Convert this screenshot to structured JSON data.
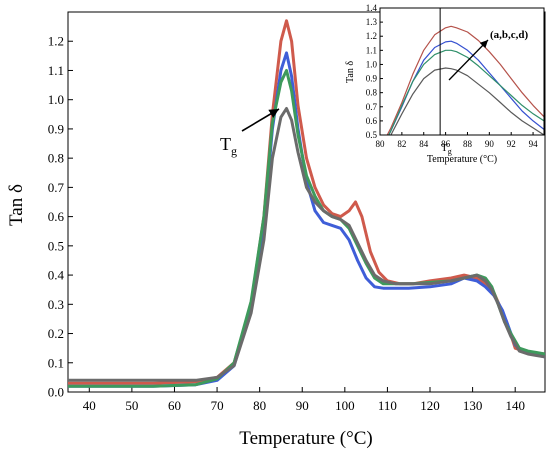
{
  "chart_data": [
    {
      "type": "line",
      "title": "",
      "xlabel": "Temperature (°C)",
      "ylabel": "Tan δ",
      "xlim": [
        35,
        147
      ],
      "ylim": [
        0,
        1.3
      ],
      "x_ticks": [
        "40",
        "50",
        "60",
        "70",
        "80",
        "90",
        "100",
        "110",
        "120",
        "130",
        "140"
      ],
      "y_ticks": [
        "0.0",
        "0.1",
        "0.2",
        "0.3",
        "0.4",
        "0.5",
        "0.6",
        "0.7",
        "0.8",
        "0.9",
        "1.0",
        "1.1",
        "1.2"
      ],
      "grid": false,
      "legend": "none",
      "annotation": {
        "text": "T",
        "subscript": "g"
      },
      "series": [
        {
          "color": "#cf5a4c",
          "x": [
            35,
            55,
            65,
            70,
            74,
            78,
            81,
            83,
            85,
            86.3,
            87.5,
            89,
            91,
            93,
            95,
            97,
            99,
            101,
            102.5,
            104,
            106,
            108,
            110,
            113,
            116,
            120,
            125,
            128,
            131,
            133,
            135,
            136.5,
            138,
            140,
            142,
            144,
            147
          ],
          "y": [
            0.03,
            0.03,
            0.035,
            0.05,
            0.1,
            0.3,
            0.6,
            0.95,
            1.2,
            1.27,
            1.2,
            0.98,
            0.8,
            0.7,
            0.64,
            0.61,
            0.6,
            0.62,
            0.65,
            0.6,
            0.48,
            0.41,
            0.38,
            0.37,
            0.37,
            0.38,
            0.39,
            0.4,
            0.39,
            0.37,
            0.34,
            0.29,
            0.24,
            0.15,
            0.14,
            0.135,
            0.13
          ]
        },
        {
          "color": "#3f5ed8",
          "x": [
            35,
            55,
            65,
            70,
            74,
            78,
            81,
            83,
            85,
            86.3,
            87.5,
            89,
            91,
            93,
            95,
            97,
            99,
            101,
            103,
            105,
            107,
            109,
            112,
            115,
            120,
            125,
            128,
            131,
            133,
            135,
            137,
            138.5,
            140,
            142,
            144,
            147
          ],
          "y": [
            0.02,
            0.02,
            0.025,
            0.04,
            0.09,
            0.29,
            0.57,
            0.9,
            1.1,
            1.16,
            1.08,
            0.9,
            0.72,
            0.62,
            0.58,
            0.57,
            0.56,
            0.52,
            0.45,
            0.39,
            0.36,
            0.355,
            0.355,
            0.355,
            0.36,
            0.37,
            0.39,
            0.38,
            0.36,
            0.33,
            0.28,
            0.22,
            0.16,
            0.14,
            0.13,
            0.12
          ]
        },
        {
          "color": "#3e9a5c",
          "x": [
            35,
            55,
            65,
            70,
            74,
            78,
            81,
            83,
            85,
            86.3,
            87.5,
            89,
            91,
            93,
            95,
            97,
            99,
            101,
            103,
            105,
            107,
            109,
            112,
            116,
            120,
            125,
            128,
            131,
            133,
            134.5,
            136,
            137.5,
            139,
            141,
            143,
            145,
            147
          ],
          "y": [
            0.02,
            0.02,
            0.025,
            0.045,
            0.1,
            0.31,
            0.6,
            0.92,
            1.06,
            1.1,
            1.03,
            0.88,
            0.74,
            0.67,
            0.62,
            0.6,
            0.59,
            0.56,
            0.5,
            0.44,
            0.39,
            0.37,
            0.37,
            0.37,
            0.375,
            0.38,
            0.39,
            0.4,
            0.39,
            0.36,
            0.3,
            0.24,
            0.2,
            0.15,
            0.14,
            0.135,
            0.13
          ]
        },
        {
          "color": "#6b6b6b",
          "x": [
            35,
            55,
            65,
            70,
            74,
            78,
            81,
            83,
            85,
            86.3,
            87.5,
            89,
            91,
            93,
            95,
            97,
            99,
            101,
            103,
            105,
            107,
            109,
            112,
            116,
            120,
            125,
            128,
            131,
            133,
            134.5,
            136,
            137.5,
            139,
            141,
            143,
            145,
            147
          ],
          "y": [
            0.04,
            0.04,
            0.04,
            0.05,
            0.09,
            0.27,
            0.52,
            0.8,
            0.94,
            0.97,
            0.93,
            0.82,
            0.7,
            0.65,
            0.62,
            0.6,
            0.59,
            0.57,
            0.51,
            0.45,
            0.4,
            0.38,
            0.37,
            0.37,
            0.37,
            0.38,
            0.39,
            0.4,
            0.38,
            0.35,
            0.3,
            0.24,
            0.19,
            0.14,
            0.13,
            0.125,
            0.12
          ]
        }
      ]
    },
    {
      "type": "line",
      "title": "",
      "xlabel": "Temperature (°C)",
      "ylabel": "Tan δ",
      "xlim": [
        80,
        95
      ],
      "ylim": [
        0.5,
        1.4
      ],
      "x_ticks": [
        "80",
        "82",
        "84",
        "86",
        "88",
        "90",
        "92",
        "94"
      ],
      "y_ticks": [
        "0.5",
        "0.6",
        "0.7",
        "0.8",
        "0.9",
        "1.0",
        "1.1",
        "1.2",
        "1.3",
        "1.4"
      ],
      "grid": false,
      "legend": "none",
      "vline_x": 85.5,
      "annotations": [
        {
          "text": "(a,b,c,d)"
        },
        {
          "text": "T",
          "subscript": "g"
        }
      ],
      "series": [
        {
          "color": "#b5524a",
          "x": [
            80,
            81,
            82,
            83,
            84,
            85,
            86,
            86.5,
            87,
            88,
            89,
            90,
            91,
            92,
            93,
            94,
            95
          ],
          "y": [
            0.4,
            0.55,
            0.73,
            0.93,
            1.1,
            1.21,
            1.26,
            1.27,
            1.26,
            1.23,
            1.17,
            1.09,
            1.0,
            0.9,
            0.8,
            0.71,
            0.63
          ]
        },
        {
          "color": "#3550d0",
          "x": [
            80,
            81,
            82,
            83,
            84,
            85,
            86,
            86.5,
            87,
            88,
            89,
            90,
            91,
            92,
            93,
            94,
            95
          ],
          "y": [
            0.38,
            0.53,
            0.7,
            0.88,
            1.03,
            1.12,
            1.16,
            1.165,
            1.15,
            1.1,
            1.03,
            0.94,
            0.85,
            0.76,
            0.67,
            0.6,
            0.54
          ]
        },
        {
          "color": "#2f8f6a",
          "x": [
            80,
            81,
            82,
            83,
            84,
            85,
            86,
            86.5,
            87,
            88,
            89,
            90,
            91,
            92,
            93,
            94,
            95
          ],
          "y": [
            0.38,
            0.53,
            0.71,
            0.88,
            1.0,
            1.07,
            1.1,
            1.1,
            1.09,
            1.05,
            0.99,
            0.92,
            0.85,
            0.78,
            0.71,
            0.65,
            0.6
          ]
        },
        {
          "color": "#5a5a5a",
          "x": [
            80,
            81,
            82,
            83,
            84,
            85,
            86,
            86.5,
            87,
            88,
            89,
            90,
            91,
            92,
            93,
            94,
            95
          ],
          "y": [
            0.36,
            0.5,
            0.65,
            0.79,
            0.9,
            0.96,
            0.975,
            0.97,
            0.96,
            0.92,
            0.86,
            0.8,
            0.73,
            0.66,
            0.6,
            0.55,
            0.5
          ]
        }
      ]
    }
  ]
}
